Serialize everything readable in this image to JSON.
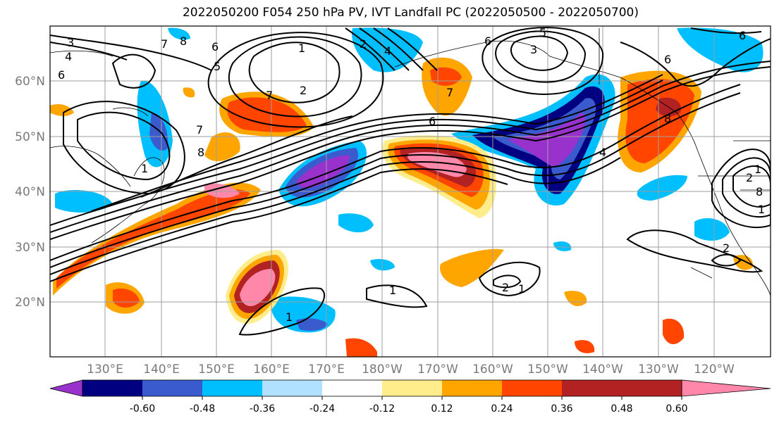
{
  "title": "2022050200 F054 250 hPa PV, IVT Landfall PC (2022050500 - 2022050700)",
  "lat_labels": [
    "60°N",
    "50°N",
    "40°N",
    "30°N",
    "20°N"
  ],
  "lon_labels": [
    "130°E",
    "140°E",
    "150°E",
    "160°E",
    "170°E",
    "180°W",
    "170°W",
    "160°W",
    "150°W",
    "140°W",
    "130°W",
    "120°W"
  ],
  "colorbar": {
    "colors": [
      "#9932cc",
      "#000080",
      "#3a5bcd",
      "#00bfff",
      "#b0e2ff",
      "#ffffff",
      "#ffec8b",
      "#ffa500",
      "#ff4500",
      "#b22222",
      "#ff88aa"
    ],
    "tick_labels": [
      "-0.60",
      "-0.48",
      "-0.36",
      "-0.24",
      "-0.12",
      "0.12",
      "0.24",
      "0.36",
      "0.48",
      "0.60"
    ]
  },
  "contour_labels": [
    "3",
    "4",
    "6",
    "7",
    "8",
    "6",
    "5",
    "1",
    "2",
    "7",
    "8",
    "1",
    "2",
    "4",
    "6",
    "3",
    "5",
    "7",
    "6",
    "7",
    "6",
    "8",
    "6",
    "4",
    "1",
    "1",
    "1",
    "2",
    "2",
    "2",
    "1",
    "1",
    "8"
  ]
}
